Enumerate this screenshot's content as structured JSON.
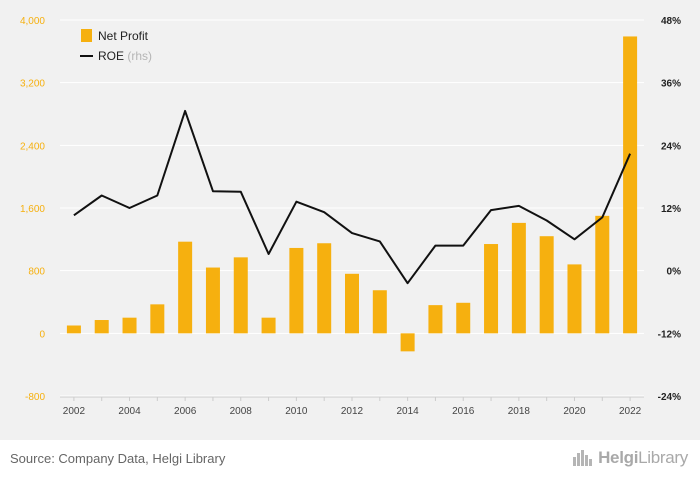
{
  "chart_data": {
    "type": "bar",
    "categories": [
      "2002",
      "2003",
      "2004",
      "2005",
      "2006",
      "2007",
      "2008",
      "2009",
      "2010",
      "2011",
      "2012",
      "2013",
      "2014",
      "2015",
      "2016",
      "2017",
      "2018",
      "2019",
      "2020",
      "2021",
      "2022"
    ],
    "x_tick_labels": [
      "2002",
      "2004",
      "2006",
      "2008",
      "2010",
      "2012",
      "2014",
      "2016",
      "2018",
      "2020",
      "2022"
    ],
    "series": [
      {
        "name": "Net Profit",
        "type": "bar",
        "axis": "left",
        "values": [
          100,
          170,
          200,
          370,
          1170,
          840,
          970,
          200,
          1090,
          1150,
          760,
          550,
          -230,
          360,
          390,
          1140,
          1410,
          1240,
          880,
          1500,
          3790
        ]
      },
      {
        "name": "ROE",
        "name_suffix": "(rhs)",
        "type": "line",
        "axis": "right",
        "values": [
          10.6,
          14.4,
          12.0,
          14.4,
          30.6,
          15.2,
          15.1,
          3.2,
          13.2,
          11.2,
          7.2,
          5.6,
          -2.4,
          4.8,
          4.8,
          11.6,
          12.4,
          9.6,
          6.0,
          10.2,
          22.4
        ]
      }
    ],
    "left_axis": {
      "min": -800,
      "max": 4000,
      "ticks": [
        "-800",
        "0",
        "800",
        "1,600",
        "2,400",
        "3,200",
        "4,000"
      ],
      "tick_values": [
        -800,
        0,
        800,
        1600,
        2400,
        3200,
        4000
      ]
    },
    "right_axis": {
      "min": -24,
      "max": 48,
      "ticks": [
        "-24%",
        "-12%",
        "0%",
        "12%",
        "24%",
        "36%",
        "48%"
      ],
      "tick_values": [
        -24,
        -12,
        0,
        12,
        24,
        36,
        48
      ]
    },
    "legend": "top-left",
    "grid": true
  },
  "colors": {
    "bar": "#f6b00f",
    "line": "#111111",
    "left_axis_text": "#f6b00f",
    "right_axis_text": "#222222",
    "grid": "#ffffff",
    "background": "#f1f1f1"
  },
  "footer": {
    "source": "Source: Company Data, Helgi Library",
    "logo_helgi": "Helgi",
    "logo_library": "Library"
  }
}
